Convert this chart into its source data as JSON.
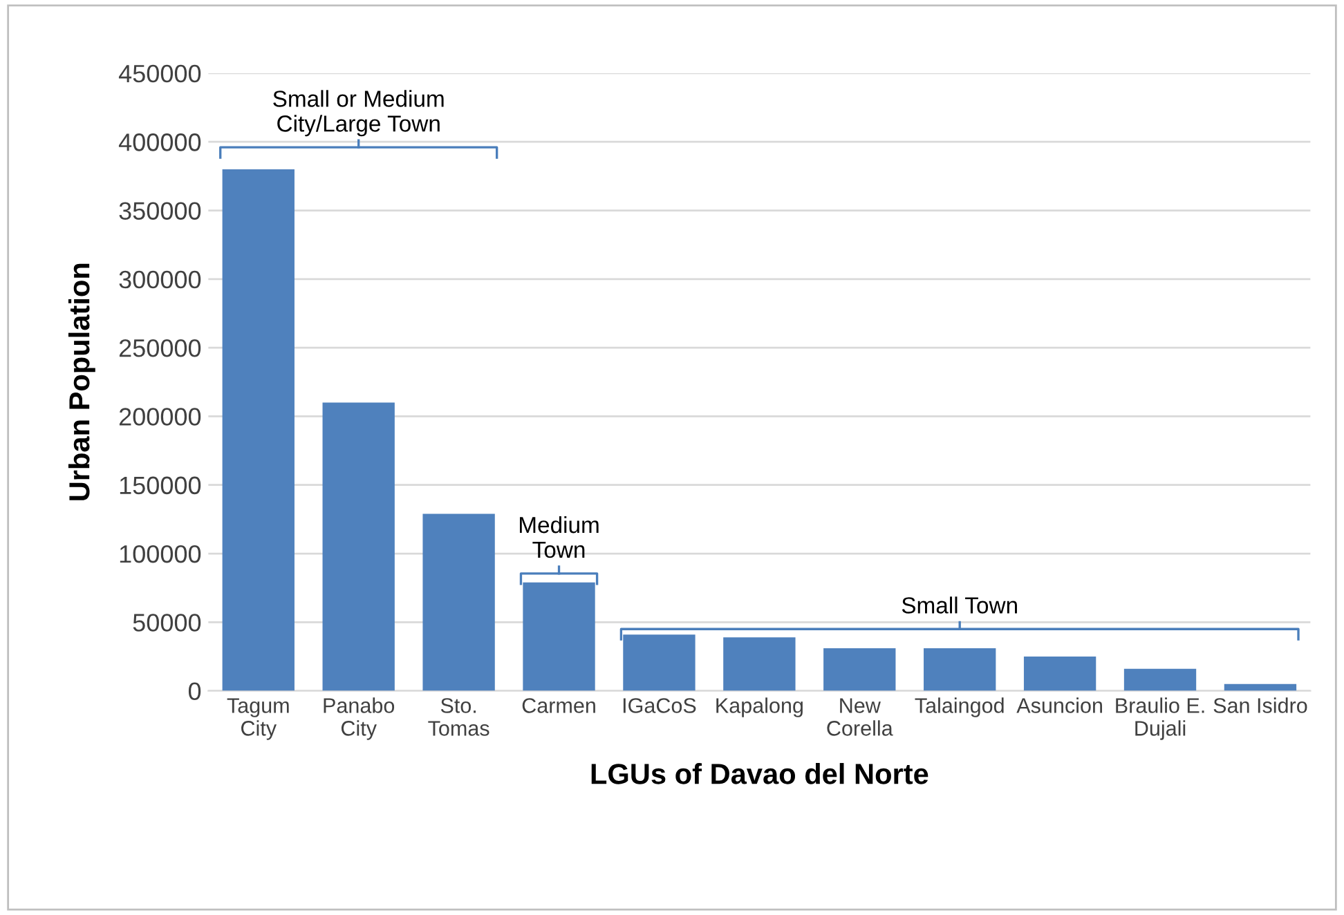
{
  "chart_data": {
    "type": "bar",
    "xlabel": "LGUs of Davao del Norte",
    "ylabel": "Urban Population",
    "categories": [
      "Tagum\nCity",
      "Panabo\nCity",
      "Sto.\nTomas",
      "Carmen",
      "IGaCoS",
      "Kapalong",
      "New\nCorella",
      "Talaingod",
      "Asuncion",
      "Braulio E.\nDujali",
      "San Isidro"
    ],
    "values": [
      380000,
      210000,
      129000,
      79000,
      41000,
      39000,
      31000,
      31000,
      25000,
      16000,
      5000
    ],
    "color": "#4f81bd",
    "ylim": [
      0,
      450000
    ],
    "yticks": [
      0,
      50000,
      100000,
      150000,
      200000,
      250000,
      300000,
      350000,
      400000,
      450000
    ],
    "grid": "y",
    "annotations": [
      "Small or Medium\nCity/Large Town",
      "Medium\nTown",
      "Small Town"
    ]
  }
}
